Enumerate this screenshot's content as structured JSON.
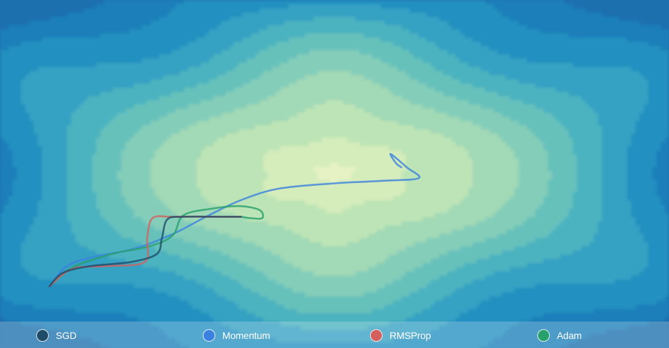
{
  "chart_data": {
    "type": "contour",
    "title": "",
    "xlabel": "",
    "ylabel": "",
    "xlim": [
      -2.5,
      2.5
    ],
    "ylim": [
      -1.3,
      1.3
    ],
    "surface": {
      "description": "loss landscape with bowl-shaped minimum and periodic ripples",
      "levels": 12,
      "colors": [
        "#f5f9d0",
        "#e7f2c4",
        "#d5ecbb",
        "#bde4b6",
        "#a2d9b6",
        "#84ceb9",
        "#66c1bb",
        "#4bb2bf",
        "#34a1c3",
        "#2390c0",
        "#1d7fb9",
        "#1b6fae"
      ]
    },
    "series": [
      {
        "name": "SGD",
        "color": "#1e4b68",
        "points": [
          [
            -2.13,
            -0.84
          ],
          [
            -2.03,
            -0.74
          ],
          [
            -1.83,
            -0.69
          ],
          [
            -1.53,
            -0.66
          ],
          [
            -1.33,
            -0.6
          ],
          [
            -1.29,
            -0.48
          ],
          [
            -1.25,
            -0.34
          ],
          [
            -1.13,
            -0.32
          ],
          [
            -0.83,
            -0.32
          ],
          [
            -0.7,
            -0.32
          ]
        ]
      },
      {
        "name": "Momentum",
        "color": "#3b82e0",
        "points": [
          [
            -2.13,
            -0.84
          ],
          [
            -2.0,
            -0.69
          ],
          [
            -1.8,
            -0.62
          ],
          [
            -1.5,
            -0.56
          ],
          [
            -1.21,
            -0.45
          ],
          [
            -0.96,
            -0.32
          ],
          [
            -0.71,
            -0.2
          ],
          [
            -0.42,
            -0.11
          ],
          [
            0.0,
            -0.07
          ],
          [
            0.38,
            -0.05
          ],
          [
            0.63,
            -0.03
          ],
          [
            0.54,
            0.05
          ],
          [
            0.42,
            0.15
          ],
          [
            0.46,
            0.08
          ],
          [
            0.5,
            0.05
          ]
        ]
      },
      {
        "name": "RMSProp",
        "color": "#d4605e",
        "points": [
          [
            -2.13,
            -0.84
          ],
          [
            -1.96,
            -0.71
          ],
          [
            -1.72,
            -0.69
          ],
          [
            -1.42,
            -0.66
          ],
          [
            -1.4,
            -0.48
          ],
          [
            -1.36,
            -0.33
          ],
          [
            -1.21,
            -0.32
          ],
          [
            -0.92,
            -0.32
          ],
          [
            -0.7,
            -0.32
          ]
        ]
      },
      {
        "name": "Adam",
        "color": "#27a06c",
        "points": [
          [
            -2.13,
            -0.84
          ],
          [
            -1.96,
            -0.7
          ],
          [
            -1.67,
            -0.6
          ],
          [
            -1.38,
            -0.54
          ],
          [
            -1.21,
            -0.46
          ],
          [
            -1.13,
            -0.31
          ],
          [
            -0.92,
            -0.26
          ],
          [
            -0.71,
            -0.24
          ],
          [
            -0.56,
            -0.27
          ],
          [
            -0.54,
            -0.33
          ],
          [
            -0.63,
            -0.33
          ],
          [
            -0.7,
            -0.32
          ]
        ]
      }
    ],
    "legend": [
      {
        "name": "SGD",
        "color": "#1e4b68"
      },
      {
        "name": "Momentum",
        "color": "#3b82e0"
      },
      {
        "name": "RMSProp",
        "color": "#d4605e"
      },
      {
        "name": "Adam",
        "color": "#27a06c"
      }
    ],
    "legend_position": "bottom"
  }
}
